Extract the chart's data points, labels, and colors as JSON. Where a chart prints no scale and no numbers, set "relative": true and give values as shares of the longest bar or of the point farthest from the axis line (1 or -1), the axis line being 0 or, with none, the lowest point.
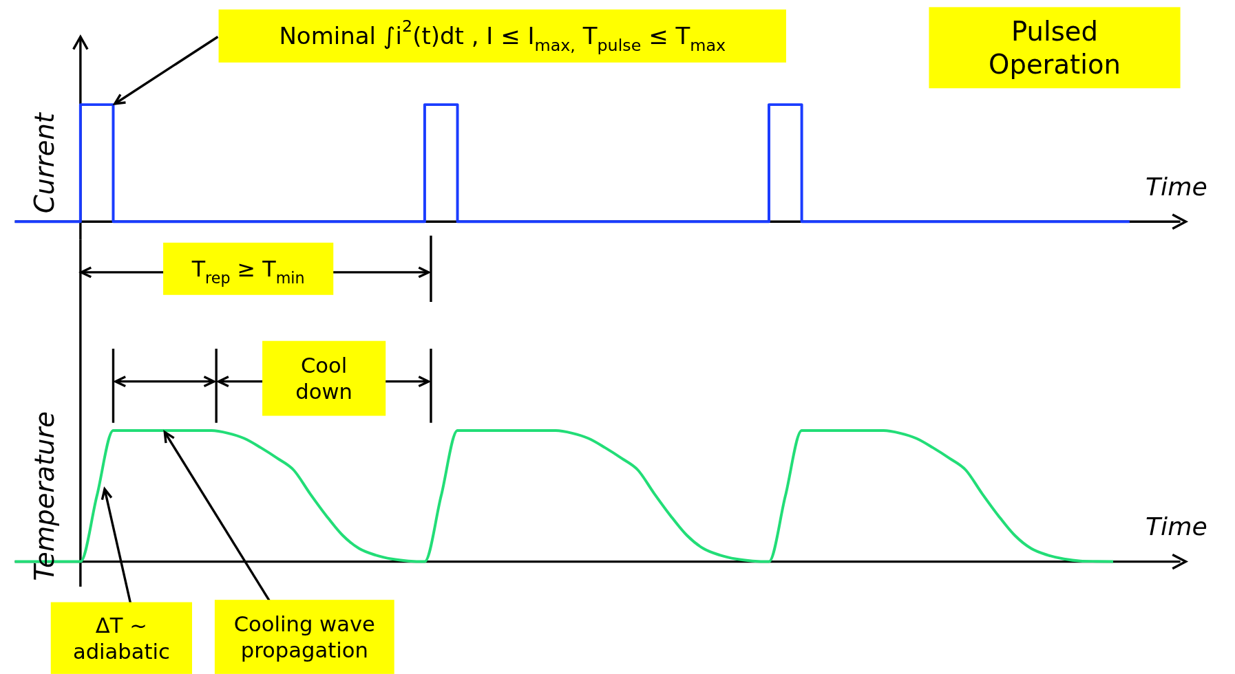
{
  "chart_data": [
    {
      "type": "step",
      "title": "Pulsed Operation",
      "xlabel": "Time",
      "ylabel": "Current",
      "relative": true,
      "categories": [
        null,
        null,
        null,
        null,
        null,
        null,
        null,
        null,
        null,
        null,
        null,
        null,
        null,
        null,
        null,
        null,
        null,
        null,
        null,
        null,
        null,
        null,
        null,
        null,
        null,
        null,
        null,
        null,
        null,
        null,
        null,
        null,
        null,
        null,
        null,
        null,
        null,
        null,
        null,
        null,
        null,
        null,
        null,
        null,
        null,
        null,
        null,
        null,
        null,
        null,
        null,
        null,
        null,
        null,
        null,
        null,
        null,
        null,
        null,
        null,
        null,
        null,
        null,
        null,
        null,
        null,
        null,
        null,
        null
      ],
      "series": [
        {
          "color": "#1a3cff",
          "values": [
            0,
            0,
            0,
            0,
            1,
            1,
            0,
            0,
            0,
            0,
            0,
            0,
            0,
            0,
            0,
            0,
            0,
            0,
            0,
            0,
            0,
            0,
            0,
            0,
            0,
            1,
            1,
            0,
            0,
            0,
            0,
            0,
            0,
            0,
            0,
            0,
            0,
            0,
            0,
            0,
            0,
            0,
            0,
            0,
            0,
            0,
            1,
            1,
            0,
            0,
            0,
            0,
            0,
            0,
            0,
            0,
            0,
            0,
            0,
            0,
            0,
            0,
            0,
            0,
            0,
            0,
            0,
            0,
            0
          ]
        }
      ],
      "annotations": [
        "Nominal ∫i$^{2}$(t)dt  , I ≤ I$_{max,}$ T$_{pulse}$ ≤ T$_{max}$",
        "T$_{rep}$ ≥ T$_{min}$"
      ]
    },
    {
      "type": "line",
      "xlabel": "Time",
      "ylabel": "Temperature",
      "relative": true,
      "categories": [
        null,
        null,
        null,
        null,
        null,
        null,
        null,
        null,
        null,
        null,
        null,
        null,
        null,
        null,
        null,
        null,
        null,
        null,
        null,
        null,
        null,
        null,
        null,
        null,
        null,
        null,
        null,
        null,
        null,
        null,
        null,
        null,
        null,
        null,
        null,
        null,
        null,
        null,
        null,
        null,
        null,
        null,
        null,
        null,
        null,
        null,
        null,
        null,
        null,
        null,
        null,
        null,
        null,
        null,
        null,
        null,
        null,
        null,
        null,
        null,
        null,
        null,
        null,
        null,
        null,
        null,
        null,
        null,
        null
      ],
      "series": [
        {
          "color": "#22dd77",
          "values": [
            0,
            0,
            0,
            0,
            0,
            0.5,
            1,
            1,
            1,
            1,
            1,
            1,
            1,
            0.98,
            0.94,
            0.87,
            0.79,
            0.7,
            0.52,
            0.35,
            0.2,
            0.1,
            0.05,
            0.02,
            0.005,
            0,
            0.5,
            1,
            1,
            1,
            1,
            1,
            1,
            1,
            0.98,
            0.94,
            0.87,
            0.79,
            0.7,
            0.52,
            0.35,
            0.2,
            0.1,
            0.05,
            0.02,
            0.005,
            0,
            0.5,
            1,
            1,
            1,
            1,
            1,
            1,
            0.98,
            0.94,
            0.87,
            0.79,
            0.7,
            0.52,
            0.35,
            0.2,
            0.1,
            0.05,
            0.02,
            0.005,
            0.002,
            0,
            null
          ]
        }
      ],
      "annotations": [
        "Cool down",
        "ΔT ~ adiabatic",
        "Cooling wave propagation"
      ]
    }
  ]
}
